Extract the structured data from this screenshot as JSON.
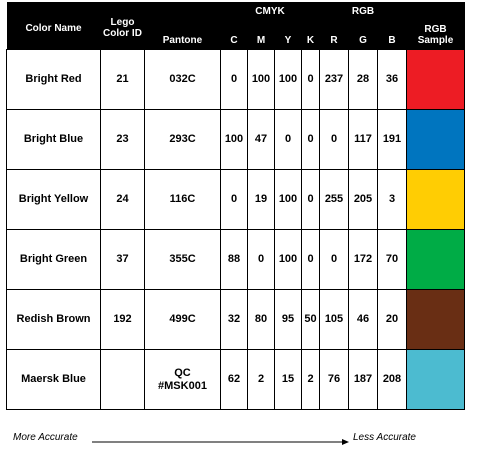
{
  "headers": {
    "color_name": "Color Name",
    "lego_color_id": "Lego Color ID",
    "pantone": "Pantone",
    "cmyk": "CMYK",
    "rgb": "RGB",
    "c": "C",
    "m": "M",
    "y": "Y",
    "k": "K",
    "r": "R",
    "g": "G",
    "b": "B",
    "rgb_sample": "RGB Sample"
  },
  "rows": [
    {
      "name": "Bright Red",
      "lego_id": "21",
      "pantone": "032C",
      "c": "0",
      "m": "100",
      "y": "100",
      "k": "0",
      "r": "237",
      "g": "28",
      "b": "36",
      "swatch": "#ED1C24"
    },
    {
      "name": "Bright Blue",
      "lego_id": "23",
      "pantone": "293C",
      "c": "100",
      "m": "47",
      "y": "0",
      "k": "0",
      "r": "0",
      "g": "117",
      "b": "191",
      "swatch": "#0075BF"
    },
    {
      "name": "Bright Yellow",
      "lego_id": "24",
      "pantone": "116C",
      "c": "0",
      "m": "19",
      "y": "100",
      "k": "0",
      "r": "255",
      "g": "205",
      "b": "3",
      "swatch": "#FFCD03"
    },
    {
      "name": "Bright Green",
      "lego_id": "37",
      "pantone": "355C",
      "c": "88",
      "m": "0",
      "y": "100",
      "k": "0",
      "r": "0",
      "g": "172",
      "b": "70",
      "swatch": "#00AC46"
    },
    {
      "name": "Redish Brown",
      "lego_id": "192",
      "pantone": "499C",
      "c": "32",
      "m": "80",
      "y": "95",
      "k": "50",
      "r": "105",
      "g": "46",
      "b": "20",
      "swatch": "#692E14"
    },
    {
      "name": "Maersk Blue",
      "lego_id": "",
      "pantone": "QC\n#MSK001",
      "c": "62",
      "m": "2",
      "y": "15",
      "k": "2",
      "r": "76",
      "g": "187",
      "b": "208",
      "swatch": "#4CBBD0"
    }
  ],
  "footer": {
    "left": "More Accurate",
    "right": "Less Accurate"
  }
}
